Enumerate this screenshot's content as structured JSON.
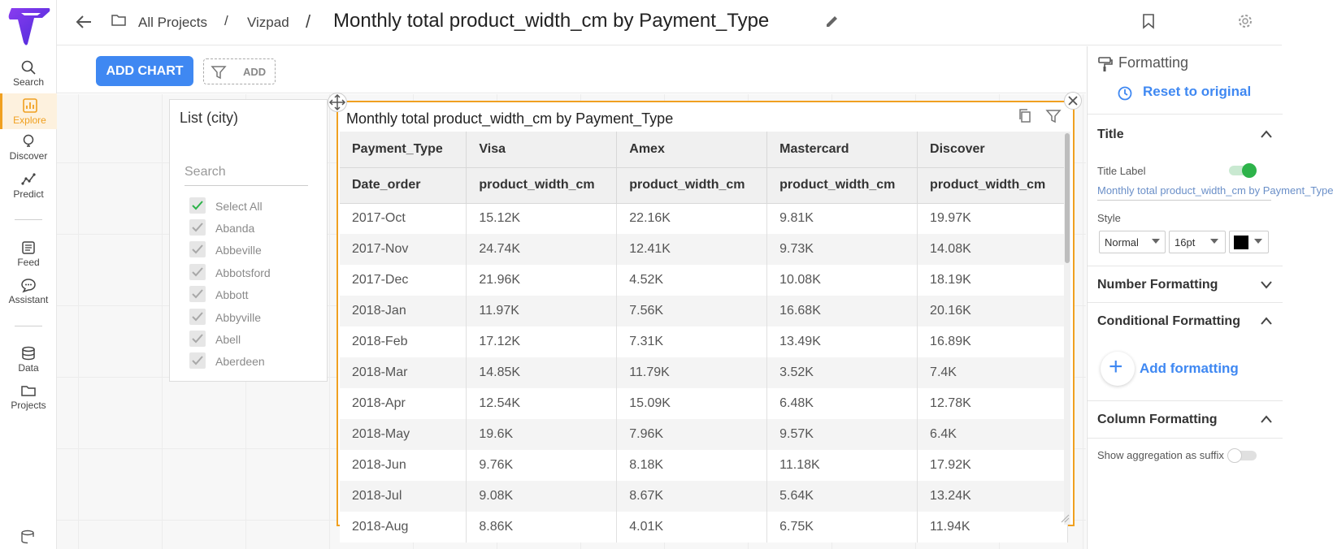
{
  "nav": {
    "items": [
      {
        "label": "Search"
      },
      {
        "label": "Explore"
      },
      {
        "label": "Discover"
      },
      {
        "label": "Predict"
      },
      {
        "label": "Feed"
      },
      {
        "label": "Assistant"
      },
      {
        "label": "Data"
      },
      {
        "label": "Projects"
      }
    ],
    "active": "Explore"
  },
  "header": {
    "breadcrumb": [
      "All Projects",
      "Vizpad"
    ],
    "separator": "/",
    "title": "Monthly total product_width_cm by Payment_Type"
  },
  "toolbar": {
    "add_chart": "ADD CHART",
    "filter_add": "ADD"
  },
  "list_card": {
    "title": "List (city)",
    "search_placeholder": "Search",
    "items": [
      {
        "label": "Select All",
        "checked": true
      },
      {
        "label": "Abanda",
        "checked": true
      },
      {
        "label": "Abbeville",
        "checked": true
      },
      {
        "label": "Abbotsford",
        "checked": true
      },
      {
        "label": "Abbott",
        "checked": true
      },
      {
        "label": "Abbyville",
        "checked": true
      },
      {
        "label": "Abell",
        "checked": true
      },
      {
        "label": "Aberdeen",
        "checked": true
      }
    ]
  },
  "table_card": {
    "title": "Monthly total product_width_cm by Payment_Type",
    "header_row1": [
      "Payment_Type",
      "Visa",
      "Amex",
      "Mastercard",
      "Discover"
    ],
    "header_row2": [
      "Date_order",
      "product_width_cm",
      "product_width_cm",
      "product_width_cm",
      "product_width_cm"
    ],
    "rows": [
      [
        "2017-Oct",
        "15.12K",
        "22.16K",
        "9.81K",
        "19.97K"
      ],
      [
        "2017-Nov",
        "24.74K",
        "12.41K",
        "9.73K",
        "14.08K"
      ],
      [
        "2017-Dec",
        "21.96K",
        "4.52K",
        "10.08K",
        "18.19K"
      ],
      [
        "2018-Jan",
        "11.97K",
        "7.56K",
        "16.68K",
        "20.16K"
      ],
      [
        "2018-Feb",
        "17.12K",
        "7.31K",
        "13.49K",
        "16.89K"
      ],
      [
        "2018-Mar",
        "14.85K",
        "11.79K",
        "3.52K",
        "7.4K"
      ],
      [
        "2018-Apr",
        "12.54K",
        "15.09K",
        "6.48K",
        "12.78K"
      ],
      [
        "2018-May",
        "19.6K",
        "7.96K",
        "9.57K",
        "6.4K"
      ],
      [
        "2018-Jun",
        "9.76K",
        "8.18K",
        "11.18K",
        "17.92K"
      ],
      [
        "2018-Jul",
        "9.08K",
        "8.67K",
        "5.64K",
        "13.24K"
      ],
      [
        "2018-Aug",
        "8.86K",
        "4.01K",
        "6.75K",
        "11.94K"
      ]
    ]
  },
  "formatting": {
    "heading": "Formatting",
    "reset": "Reset to original",
    "title_section": "Title",
    "title_label": "Title Label",
    "title_value": "Monthly total product_width_cm by Payment_Type",
    "style_label": "Style",
    "style_value": "Normal",
    "size_value": "16pt",
    "color_value": "#000000",
    "number_formatting": "Number Formatting",
    "conditional_formatting": "Conditional Formatting",
    "add_formatting": "Add formatting",
    "column_formatting": "Column Formatting",
    "show_agg": "Show aggregation as suffix"
  },
  "colors": {
    "accent": "#f0a020",
    "primary": "#3f88f2",
    "toggle_on": "#2db34a"
  }
}
